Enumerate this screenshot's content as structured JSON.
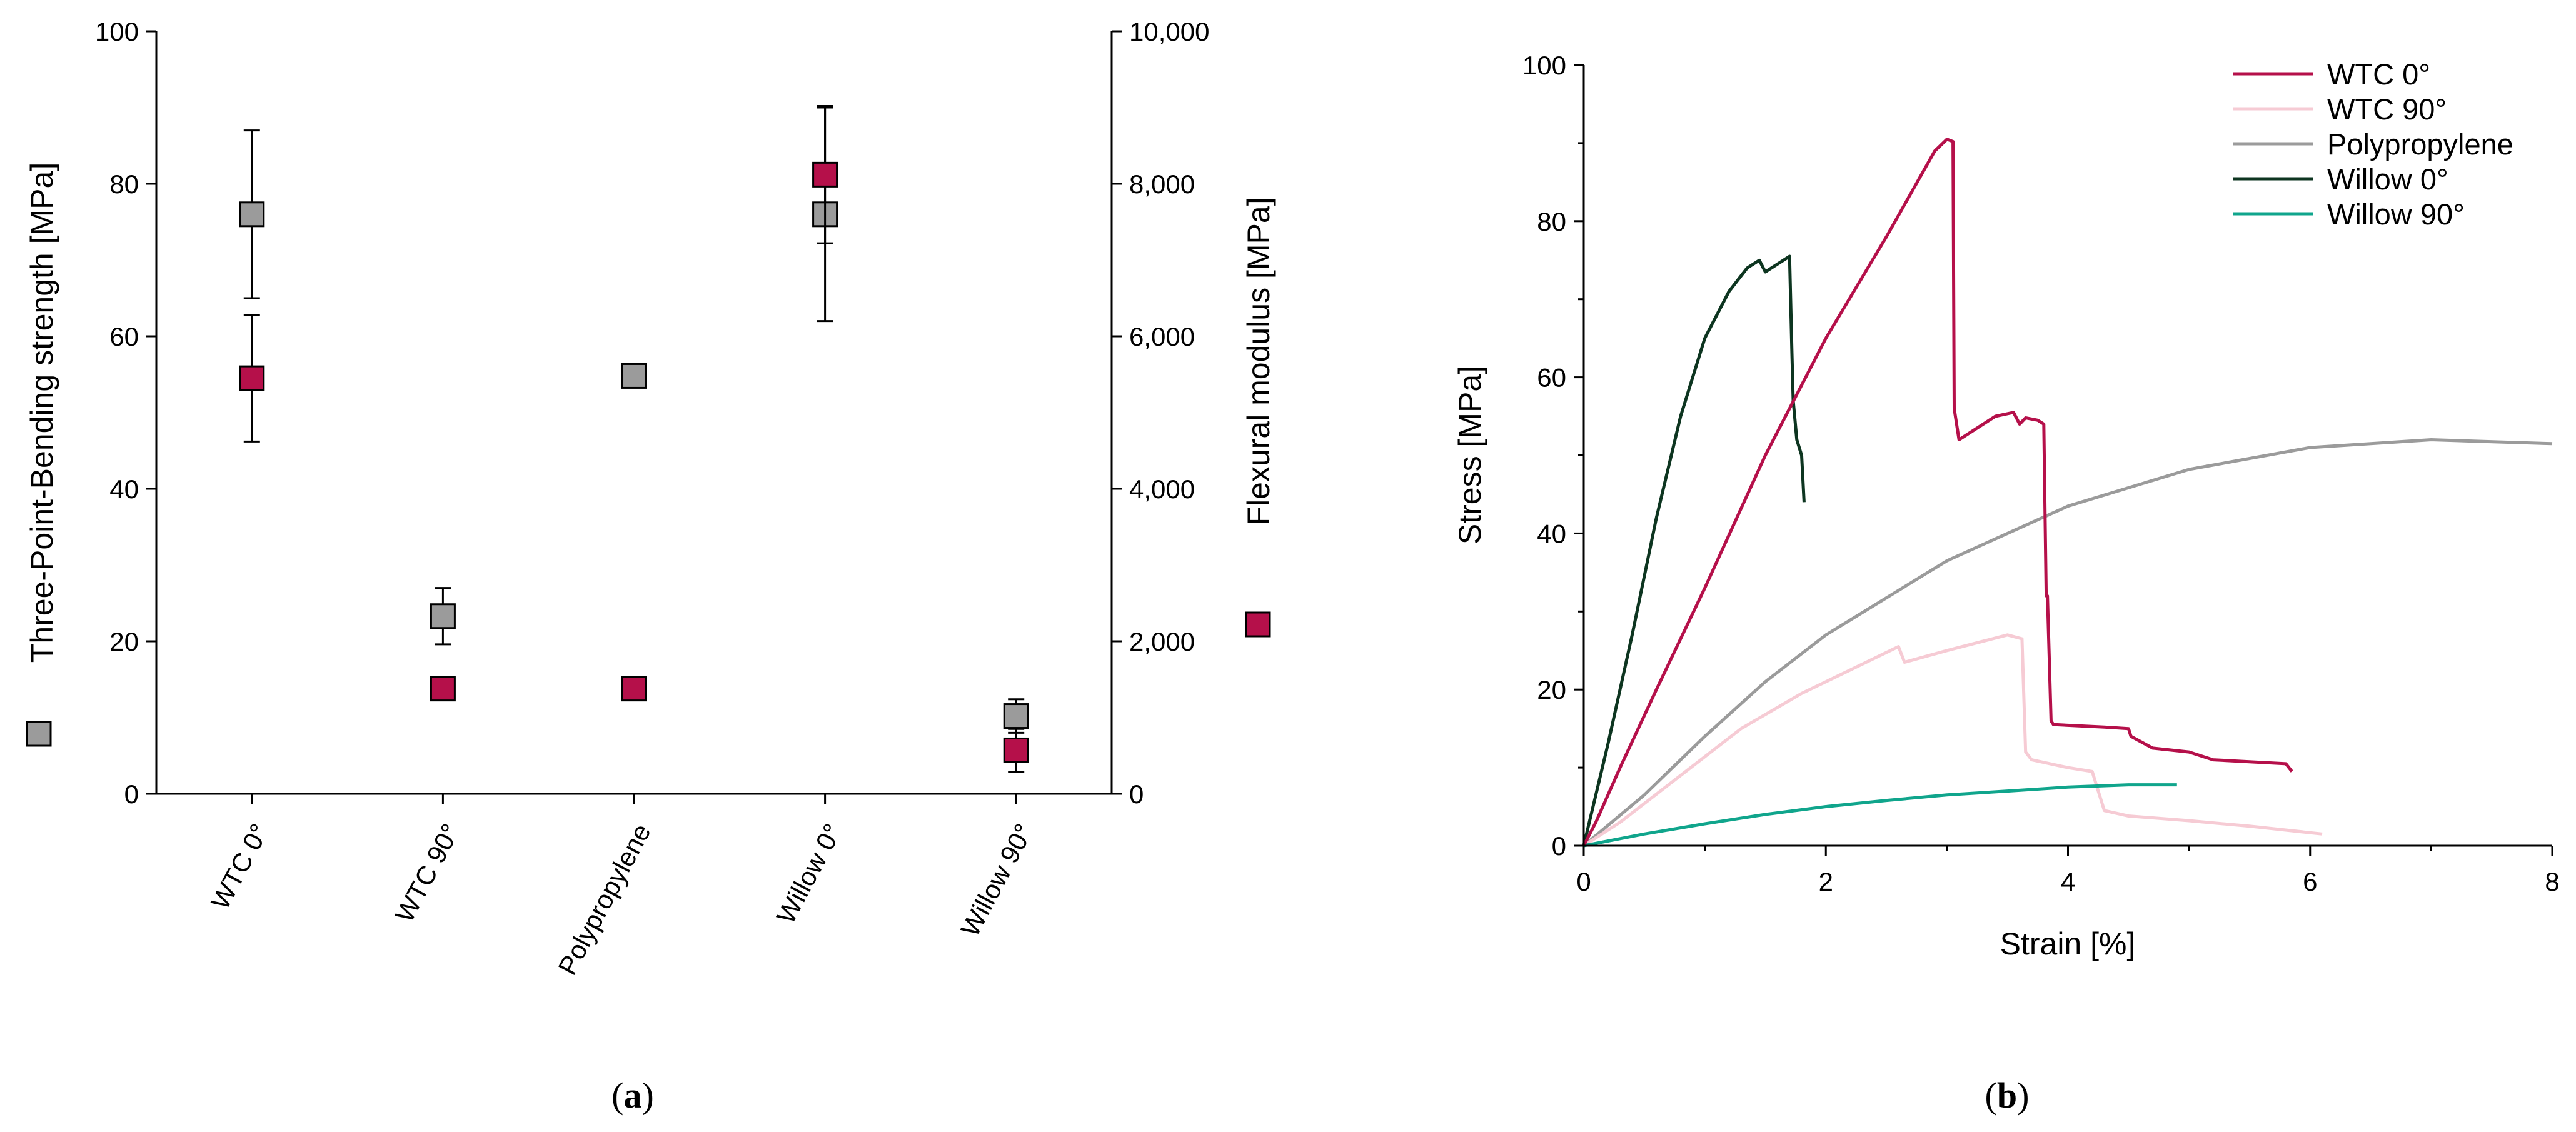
{
  "chart_data": [
    {
      "id": "a",
      "type": "scatter",
      "caption": "a",
      "categories": [
        "WTC 0°",
        "WTC 90°",
        "Polypropylene",
        "Willow 0°",
        "Willow 90°"
      ],
      "left_axis": {
        "label": "Three-Point-Bending strength [MPa]",
        "range": [
          0,
          100
        ],
        "ticks": [
          "0",
          "20",
          "40",
          "60",
          "80",
          "100"
        ],
        "tick_values": [
          0,
          20,
          40,
          60,
          80,
          100
        ]
      },
      "right_axis": {
        "label": "Flexural modulus [MPa]",
        "range": [
          0,
          10000
        ],
        "ticks": [
          "0",
          "2,000",
          "4,000",
          "6,000",
          "8,000",
          "10,000"
        ],
        "tick_values": [
          0,
          2000,
          4000,
          6000,
          8000,
          10000
        ]
      },
      "series": [
        {
          "name": "Three-Point-Bending strength",
          "axis": "left",
          "color": "#9b9b9b",
          "values": [
            76,
            23.3,
            54.8,
            76,
            10.2
          ],
          "errors": [
            11,
            3.7,
            1.5,
            14,
            2.2
          ]
        },
        {
          "name": "Flexural modulus",
          "axis": "right",
          "color": "#b5104a",
          "values": [
            5450,
            1380,
            1380,
            8120,
            570
          ],
          "errors": [
            830,
            60,
            120,
            900,
            280
          ]
        }
      ],
      "legend_markers": [
        {
          "series": "Three-Point-Bending strength",
          "color": "#9b9b9b"
        },
        {
          "series": "Flexural modulus",
          "color": "#b5104a"
        }
      ]
    },
    {
      "id": "b",
      "type": "line",
      "caption": "b",
      "xlabel": "Strain [%]",
      "ylabel": "Stress [MPa]",
      "xlim": [
        0,
        8
      ],
      "ylim": [
        0,
        100
      ],
      "xticks": [
        "0",
        "2",
        "4",
        "6",
        "8"
      ],
      "xtick_values": [
        0,
        2,
        4,
        6,
        8
      ],
      "yticks": [
        "0",
        "20",
        "40",
        "60",
        "80",
        "100"
      ],
      "ytick_values": [
        0,
        20,
        40,
        60,
        80,
        100
      ],
      "legend_position": "top-right",
      "series": [
        {
          "name": "WTC 0°",
          "color": "#b5104a",
          "x": [
            0,
            0.1,
            0.3,
            0.6,
            1.0,
            1.5,
            2.0,
            2.5,
            2.9,
            3.0,
            3.05,
            3.06,
            3.1,
            3.2,
            3.4,
            3.55,
            3.6,
            3.65,
            3.75,
            3.8,
            3.82,
            3.83,
            3.86,
            3.88,
            3.9,
            4.3,
            4.5,
            4.52,
            4.7,
            5.0,
            5.2,
            5.8,
            5.85
          ],
          "y": [
            0,
            3,
            10,
            20,
            33,
            50,
            65,
            78,
            89,
            90.5,
            90.2,
            56,
            52,
            53,
            55,
            55.5,
            54,
            54.8,
            54.5,
            54,
            32,
            32,
            16,
            15.5,
            15.5,
            15.2,
            15,
            14,
            12.5,
            12,
            11,
            10.5,
            9.5
          ]
        },
        {
          "name": "WTC 90°",
          "color": "#f6cbd4",
          "x": [
            0,
            0.3,
            0.8,
            1.3,
            1.8,
            2.2,
            2.6,
            2.65,
            3.0,
            3.5,
            3.62,
            3.65,
            3.7,
            4.0,
            4.2,
            4.25,
            4.3,
            4.5,
            5.0,
            5.5,
            6.1
          ],
          "y": [
            0,
            3,
            9,
            15,
            19.5,
            22.5,
            25.5,
            23.5,
            25,
            27,
            26.5,
            12,
            11,
            10,
            9.5,
            7,
            4.5,
            3.8,
            3.2,
            2.5,
            1.5
          ]
        },
        {
          "name": "Polypropylene",
          "color": "#9b9b9b",
          "x": [
            0,
            0.5,
            1,
            1.5,
            2,
            3,
            4,
            5,
            6,
            7,
            8
          ],
          "y": [
            0,
            6.5,
            14,
            21,
            27,
            36.5,
            43.5,
            48.2,
            51,
            52,
            51.5
          ]
        },
        {
          "name": "Willow 0°",
          "color": "#0d3520",
          "x": [
            0,
            0.2,
            0.4,
            0.6,
            0.8,
            1.0,
            1.2,
            1.35,
            1.45,
            1.5,
            1.6,
            1.7,
            1.72,
            1.73,
            1.76,
            1.8,
            1.82
          ],
          "y": [
            0,
            13,
            27,
            42,
            55,
            65,
            71,
            74,
            75,
            73.5,
            74.5,
            75.5,
            63,
            57,
            52,
            50,
            44
          ]
        },
        {
          "name": "Willow 90°",
          "color": "#10a58c",
          "x": [
            0,
            0.5,
            1,
            1.5,
            2,
            2.5,
            3,
            3.5,
            4,
            4.5,
            4.9
          ],
          "y": [
            0,
            1.5,
            2.8,
            4,
            5,
            5.8,
            6.5,
            7,
            7.5,
            7.8,
            7.8
          ]
        }
      ]
    }
  ]
}
